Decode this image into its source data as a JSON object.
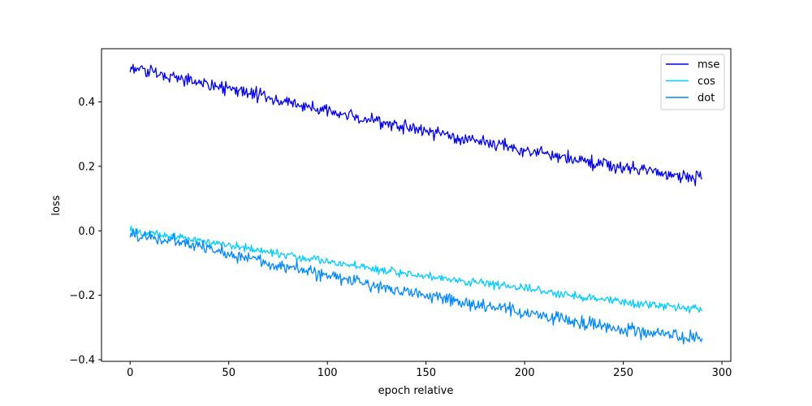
{
  "chart_data": {
    "type": "line",
    "title": "",
    "xlabel": "epoch relative",
    "ylabel": "loss",
    "xlim": [
      -14.5,
      304.5
    ],
    "ylim": [
      -0.405,
      0.565
    ],
    "xticks": [
      0,
      50,
      100,
      150,
      200,
      250,
      300
    ],
    "xtick_labels": [
      "0",
      "50",
      "100",
      "150",
      "200",
      "250",
      "300"
    ],
    "yticks": [
      -0.4,
      -0.2,
      0.0,
      0.2,
      0.4
    ],
    "ytick_labels": [
      "−0.4",
      "−0.2",
      "0.0",
      "0.2",
      "0.4"
    ],
    "grid": false,
    "legend_position": "upper right",
    "x_range": [
      0,
      290
    ],
    "series": [
      {
        "name": "mse",
        "color": "#0000ee",
        "x": [
          0,
          25,
          50,
          75,
          100,
          125,
          150,
          175,
          200,
          225,
          250,
          275,
          290
        ],
        "values": [
          0.505,
          0.475,
          0.44,
          0.405,
          0.37,
          0.34,
          0.31,
          0.28,
          0.25,
          0.22,
          0.195,
          0.175,
          0.16
        ]
      },
      {
        "name": "cos",
        "color": "#00ccff",
        "x": [
          0,
          25,
          50,
          75,
          100,
          125,
          150,
          175,
          200,
          225,
          250,
          275,
          290
        ],
        "values": [
          0.0,
          -0.02,
          -0.045,
          -0.07,
          -0.095,
          -0.12,
          -0.14,
          -0.16,
          -0.18,
          -0.2,
          -0.22,
          -0.235,
          -0.245
        ]
      },
      {
        "name": "dot",
        "color": "#0088ff",
        "x": [
          0,
          25,
          50,
          75,
          100,
          125,
          150,
          175,
          200,
          225,
          250,
          275,
          290
        ],
        "values": [
          -0.01,
          -0.035,
          -0.07,
          -0.105,
          -0.14,
          -0.17,
          -0.2,
          -0.23,
          -0.255,
          -0.28,
          -0.305,
          -0.325,
          -0.34
        ]
      }
    ]
  }
}
